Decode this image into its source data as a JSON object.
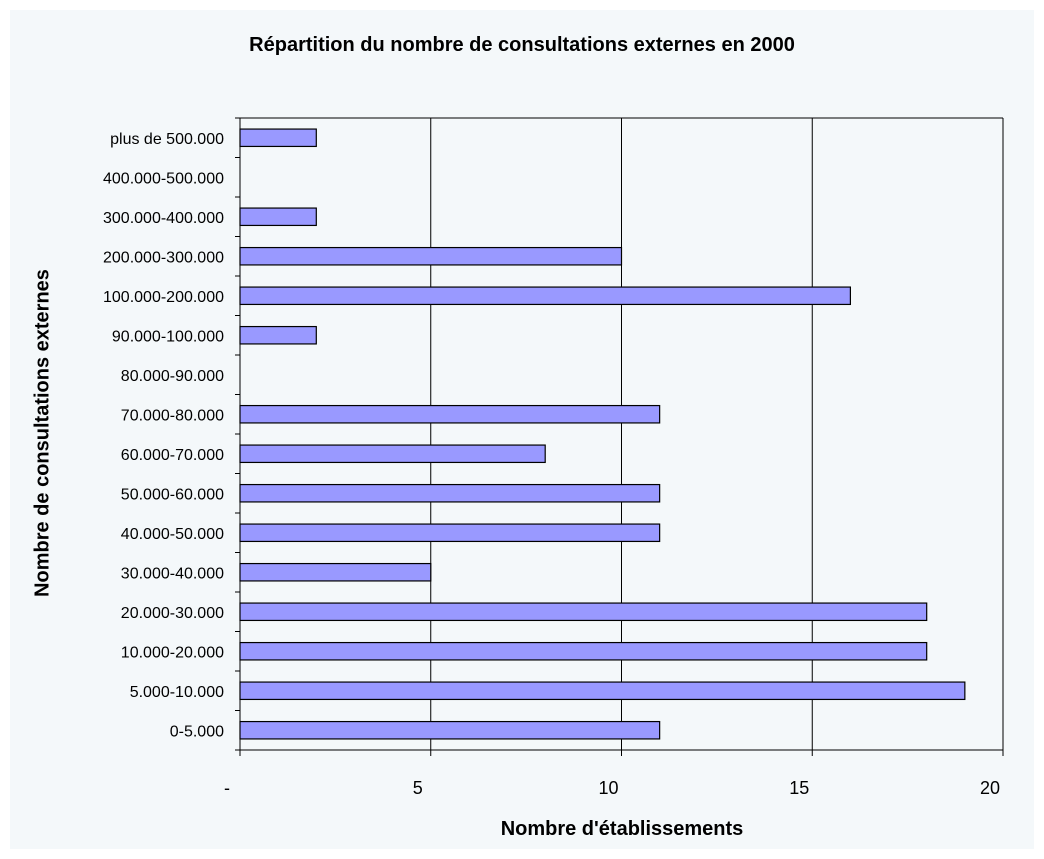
{
  "chart_data": {
    "type": "bar",
    "orientation": "horizontal",
    "title": "Répartition du nombre de consultations externes en 2000",
    "xlabel": "Nombre d'établissements",
    "ylabel": "Nombre de consultations externes",
    "categories": [
      "0-5.000",
      "5.000-10.000",
      "10.000-20.000",
      "20.000-30.000",
      "30.000-40.000",
      "40.000-50.000",
      "50.000-60.000",
      "60.000-70.000",
      "70.000-80.000",
      "80.000-90.000",
      "90.000-100.000",
      "100.000-200.000",
      "200.000-300.000",
      "300.000-400.000",
      "400.000-500.000",
      "plus de 500.000"
    ],
    "values": [
      11,
      19,
      18,
      18,
      5,
      11,
      11,
      8,
      11,
      0,
      2,
      16,
      10,
      2,
      0,
      2
    ],
    "xlim": [
      0,
      20
    ],
    "xticks": [
      0,
      5,
      10,
      15,
      20
    ],
    "xtick_labels": [
      "-",
      "5",
      "10",
      "15",
      "20"
    ],
    "grid": "vertical",
    "legend": "none",
    "colors": {
      "bar_fill": "#9999ff",
      "bar_stroke": "#000000",
      "background": "#f4f8fa",
      "grid": "#000000"
    }
  }
}
